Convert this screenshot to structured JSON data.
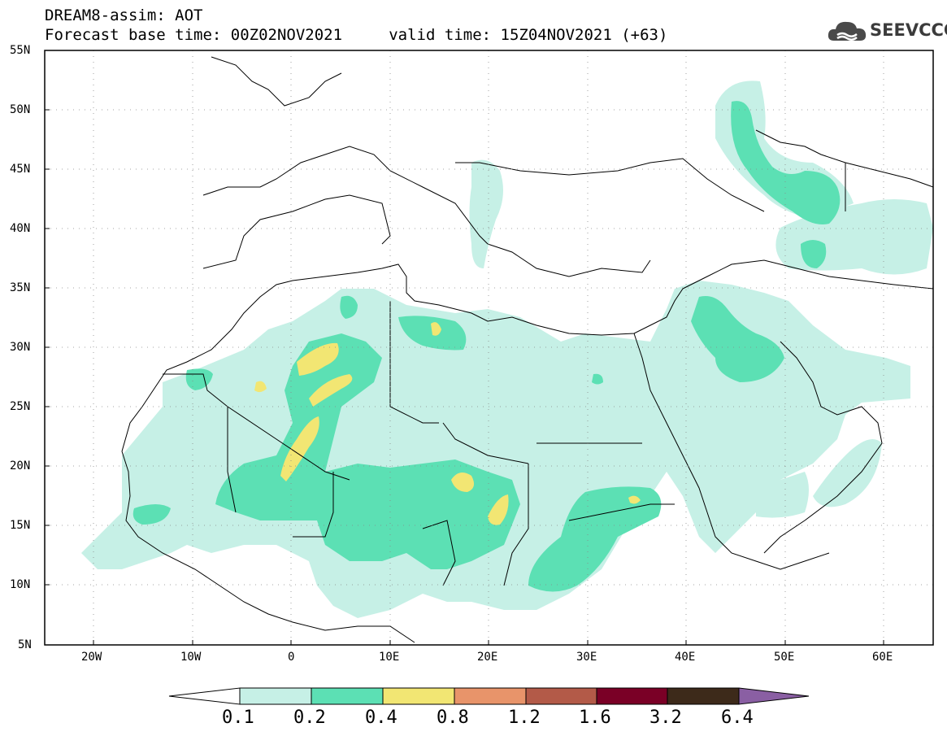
{
  "header": {
    "title": "DREAM8-assim: AOT",
    "subtitle": "Forecast base time: 00Z02NOV2021     valid time: 15Z04NOV2021 (+63)"
  },
  "logo": {
    "text": "SEEVCCC",
    "icon": "cloud-icon"
  },
  "map": {
    "projection": "lat-lon",
    "lon_range": [
      -25,
      65
    ],
    "lat_range": [
      5,
      55
    ],
    "grid": true,
    "lat_labels": [
      "55N",
      "50N",
      "45N",
      "40N",
      "35N",
      "30N",
      "25N",
      "20N",
      "15N",
      "10N",
      "5N"
    ],
    "lon_labels": [
      "20W",
      "10W",
      "0",
      "10E",
      "20E",
      "30E",
      "40E",
      "50E",
      "60E"
    ]
  },
  "colorbar": {
    "labels": [
      "0.1",
      "0.2",
      "0.4",
      "0.8",
      "1.2",
      "1.6",
      "3.2",
      "6.4"
    ],
    "colors": [
      "#c6f0e6",
      "#5ce0b4",
      "#f2e673",
      "#e8946a",
      "#b35a48",
      "#7a0026",
      "#3d2a1a",
      "#8a5fa3"
    ],
    "under_color": "#ffffff",
    "over_color": "#8a5fa3"
  },
  "colors": {
    "level1": "#c6f0e6",
    "level2": "#5ce0b4",
    "level3": "#f2e673"
  }
}
